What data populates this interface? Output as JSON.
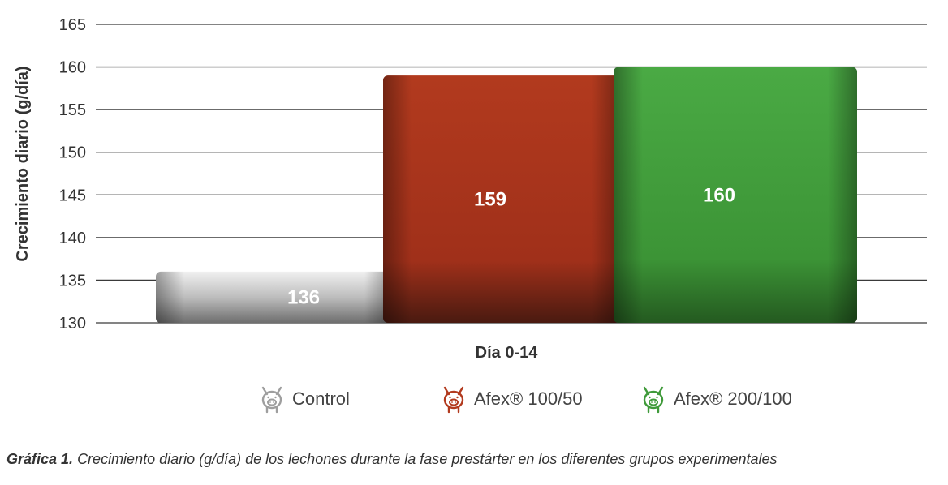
{
  "chart_data": {
    "type": "bar",
    "ylabel": "Crecimiento diario (g/día)",
    "xlabel": "Día 0-14",
    "ylim": [
      130,
      165
    ],
    "yticks": [
      130,
      135,
      140,
      145,
      150,
      155,
      160,
      165
    ],
    "grid": true,
    "legend_position": "bottom",
    "series": [
      {
        "name": "Control",
        "value": 136,
        "label": "136",
        "color": "#a6a6a6"
      },
      {
        "name": "Afex® 100/50",
        "value": 159,
        "label": "159",
        "color": "#a8321a"
      },
      {
        "name": "Afex® 200/100",
        "value": 160,
        "label": "160",
        "color": "#3f9a3a"
      }
    ]
  },
  "legend": {
    "items": [
      {
        "label": "Control",
        "icon": "pig-icon",
        "color": "#9e9e9e"
      },
      {
        "label": "Afex® 100/50",
        "icon": "pig-icon",
        "color": "#b23a1e"
      },
      {
        "label": "Afex® 200/100",
        "icon": "pig-icon",
        "color": "#3f9a3a"
      }
    ]
  },
  "caption": {
    "prefix": "Gráfica 1.",
    "text": "Crecimiento diario (g/día) de los lechones durante la fase prestárter en los diferentes grupos experimentales"
  }
}
